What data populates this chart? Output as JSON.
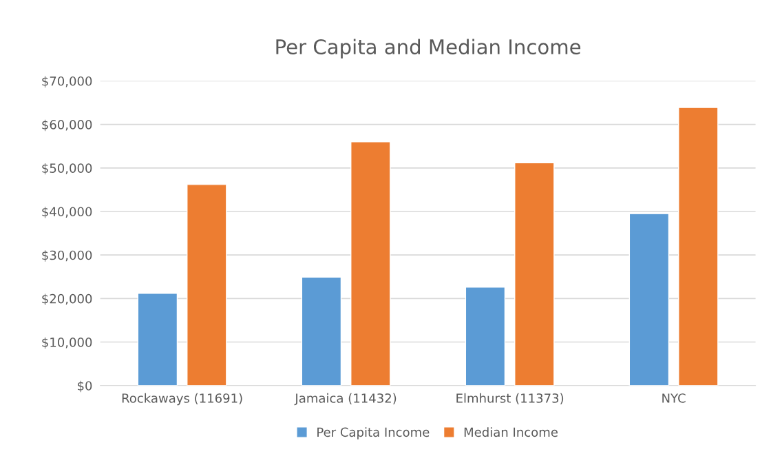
{
  "chart_data": {
    "type": "bar",
    "title": "Per Capita and Median Income",
    "categories": [
      "Rockaways (11691)",
      "Jamaica (11432)",
      "Elmhurst (11373)",
      "NYC"
    ],
    "series": [
      {
        "name": "Per Capita Income",
        "color": "#5b9bd5",
        "values": [
          21200,
          24900,
          22600,
          39500
        ]
      },
      {
        "name": "Median Income",
        "color": "#ed7d31",
        "values": [
          46200,
          56000,
          51200,
          63900
        ]
      }
    ],
    "ylim": [
      0,
      70000
    ],
    "yticks": [
      {
        "value": 0,
        "label": "$0"
      },
      {
        "value": 10000,
        "label": "$10,000"
      },
      {
        "value": 20000,
        "label": "$20,000"
      },
      {
        "value": 30000,
        "label": "$30,000"
      },
      {
        "value": 40000,
        "label": "$40,000"
      },
      {
        "value": 50000,
        "label": "$50,000"
      },
      {
        "value": 60000,
        "label": "$60,000"
      },
      {
        "value": 70000,
        "label": "$70,000"
      }
    ],
    "grid": "y",
    "legend": "bottom"
  }
}
